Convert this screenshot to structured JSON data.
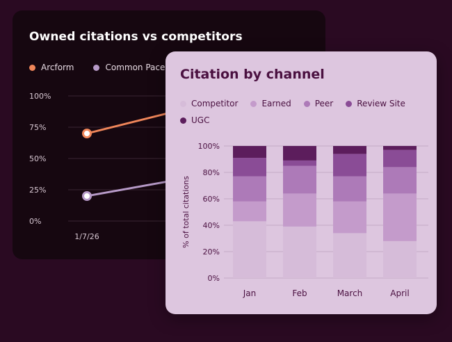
{
  "chart_data": [
    {
      "type": "line",
      "title": "Owned citations vs competitors",
      "y_tick_labels": [
        "100%",
        "75%",
        "50%",
        "25%",
        "0%"
      ],
      "y_ticks": [
        100,
        75,
        50,
        25,
        0
      ],
      "ylim": [
        0,
        100
      ],
      "x": [
        "1/7/26"
      ],
      "legend_placement": "top",
      "grid": true,
      "series": [
        {
          "name": "Arcform",
          "color": "#f0865a",
          "values": [
            70
          ],
          "trend": "increasing"
        },
        {
          "name": "Common Pace",
          "color": "#b79ac8",
          "values": [
            20
          ],
          "trend": "increasing"
        }
      ]
    },
    {
      "type": "bar",
      "stacked": true,
      "title": "Citation by channel",
      "ylabel": "% of total citations",
      "ylim": [
        0,
        100
      ],
      "y_ticks": [
        0,
        20,
        40,
        60,
        80,
        100
      ],
      "y_tick_labels": [
        "0%",
        "20%",
        "40%",
        "60%",
        "80%",
        "100%"
      ],
      "categories": [
        "Jan",
        "Feb",
        "March",
        "April"
      ],
      "legend_placement": "top",
      "grid": true,
      "series": [
        {
          "name": "Competitor",
          "color": "#d6bcd9",
          "values": [
            43,
            39,
            34,
            28
          ]
        },
        {
          "name": "Earned",
          "color": "#c49bcb",
          "values": [
            15,
            25,
            24,
            36
          ]
        },
        {
          "name": "Peer",
          "color": "#ad7ab8",
          "values": [
            19,
            21,
            19,
            20
          ]
        },
        {
          "name": "Review Site",
          "color": "#8a4c96",
          "values": [
            14,
            4,
            17,
            13
          ]
        },
        {
          "name": "UGC",
          "color": "#5c1d5c",
          "values": [
            9,
            11,
            6,
            3
          ]
        }
      ]
    }
  ]
}
